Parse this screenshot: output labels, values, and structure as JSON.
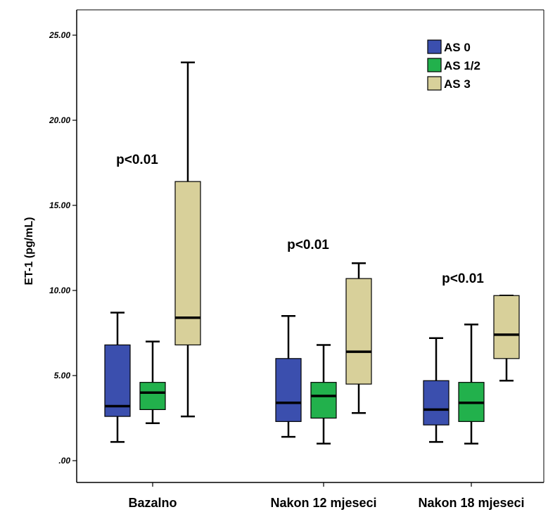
{
  "chart_data": {
    "type": "box",
    "ylabel": "ET-1 (pg/mL)",
    "ylim": [
      0,
      25
    ],
    "yticks": [
      ".00",
      "5.00",
      "10.00",
      "15.00",
      "20.00",
      "25.00"
    ],
    "grid": false,
    "legend_position": "top-right",
    "categories": [
      "Bazalno",
      "Nakon 12 mjeseci",
      "Nakon 18 mjeseci"
    ],
    "annotations": [
      "p<0.01",
      "p<0.01",
      "p<0.01"
    ],
    "series": [
      {
        "name": "AS 0",
        "color": "#3b4fae",
        "boxes": [
          {
            "min": 1.1,
            "q1": 2.6,
            "median": 3.2,
            "q3": 6.8,
            "max": 8.7
          },
          {
            "min": 1.4,
            "q1": 2.3,
            "median": 3.4,
            "q3": 6.0,
            "max": 8.5
          },
          {
            "min": 1.1,
            "q1": 2.1,
            "median": 3.0,
            "q3": 4.7,
            "max": 7.2
          }
        ]
      },
      {
        "name": "AS 1/2",
        "color": "#22b14c",
        "boxes": [
          {
            "min": 2.2,
            "q1": 3.0,
            "median": 4.0,
            "q3": 4.6,
            "max": 7.0
          },
          {
            "min": 1.0,
            "q1": 2.5,
            "median": 3.8,
            "q3": 4.6,
            "max": 6.8
          },
          {
            "min": 1.0,
            "q1": 2.3,
            "median": 3.4,
            "q3": 4.6,
            "max": 8.0
          }
        ]
      },
      {
        "name": "AS 3",
        "color": "#d8d09a",
        "boxes": [
          {
            "min": 2.6,
            "q1": 6.8,
            "median": 8.4,
            "q3": 16.4,
            "max": 23.4
          },
          {
            "min": 2.8,
            "q1": 4.5,
            "median": 6.4,
            "q3": 10.7,
            "max": 11.6
          },
          {
            "min": 4.7,
            "q1": 6.0,
            "median": 7.4,
            "q3": 9.7,
            "max": 9.7
          }
        ]
      }
    ]
  }
}
